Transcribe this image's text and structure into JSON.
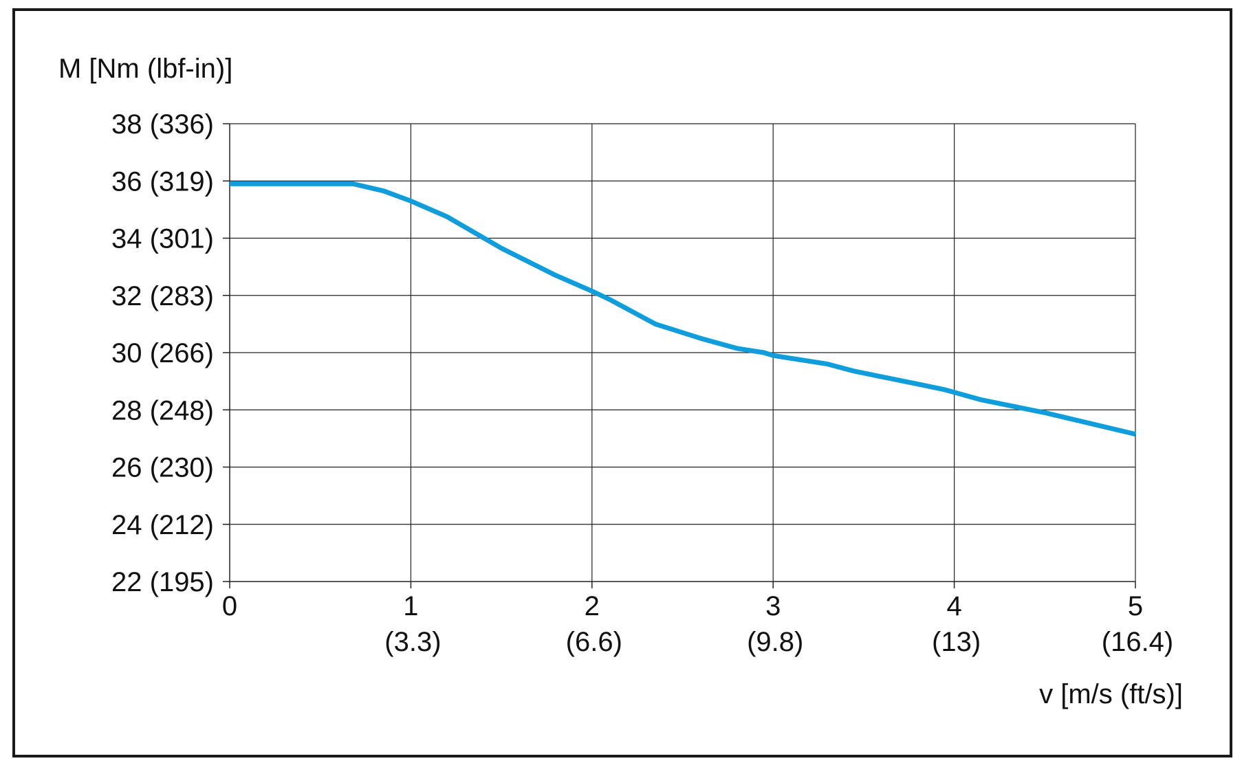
{
  "chart_data": {
    "type": "line",
    "xlabel": "v [m/s (ft/s)]",
    "ylabel": "M [Nm (lbf-in)]",
    "xlim": [
      0,
      5
    ],
    "ylim": [
      22,
      38
    ],
    "grid": true,
    "x_ticks": [
      {
        "value": 0,
        "label": "0",
        "sub": ""
      },
      {
        "value": 1,
        "label": "1",
        "sub": "(3.3)"
      },
      {
        "value": 2,
        "label": "2",
        "sub": "(6.6)"
      },
      {
        "value": 3,
        "label": "3",
        "sub": "(9.8)"
      },
      {
        "value": 4,
        "label": "4",
        "sub": "(13)"
      },
      {
        "value": 5,
        "label": "5",
        "sub": "(16.4)"
      }
    ],
    "y_ticks": [
      {
        "value": 22,
        "label": "22 (195)"
      },
      {
        "value": 24,
        "label": "24 (212)"
      },
      {
        "value": 26,
        "label": "26 (230)"
      },
      {
        "value": 28,
        "label": "28 (248)"
      },
      {
        "value": 30,
        "label": "30 (266)"
      },
      {
        "value": 32,
        "label": "32 (283)"
      },
      {
        "value": 34,
        "label": "34 (301)"
      },
      {
        "value": 36,
        "label": "36 (319)"
      },
      {
        "value": 38,
        "label": "38 (336)"
      }
    ],
    "series": [
      {
        "color": "#0f9ddc",
        "x": [
          0,
          0.68,
          0.85,
          1.0,
          1.2,
          1.5,
          1.8,
          2.0,
          2.1,
          2.35,
          2.6,
          2.8,
          2.95,
          3.0,
          3.3,
          3.45,
          3.8,
          3.95,
          4.15,
          4.5,
          5.0
        ],
        "y": [
          35.9,
          35.9,
          35.65,
          35.3,
          34.75,
          33.65,
          32.7,
          32.15,
          31.85,
          31.0,
          30.5,
          30.15,
          30.0,
          29.9,
          29.6,
          29.35,
          28.9,
          28.7,
          28.35,
          27.9,
          27.15
        ]
      }
    ]
  }
}
